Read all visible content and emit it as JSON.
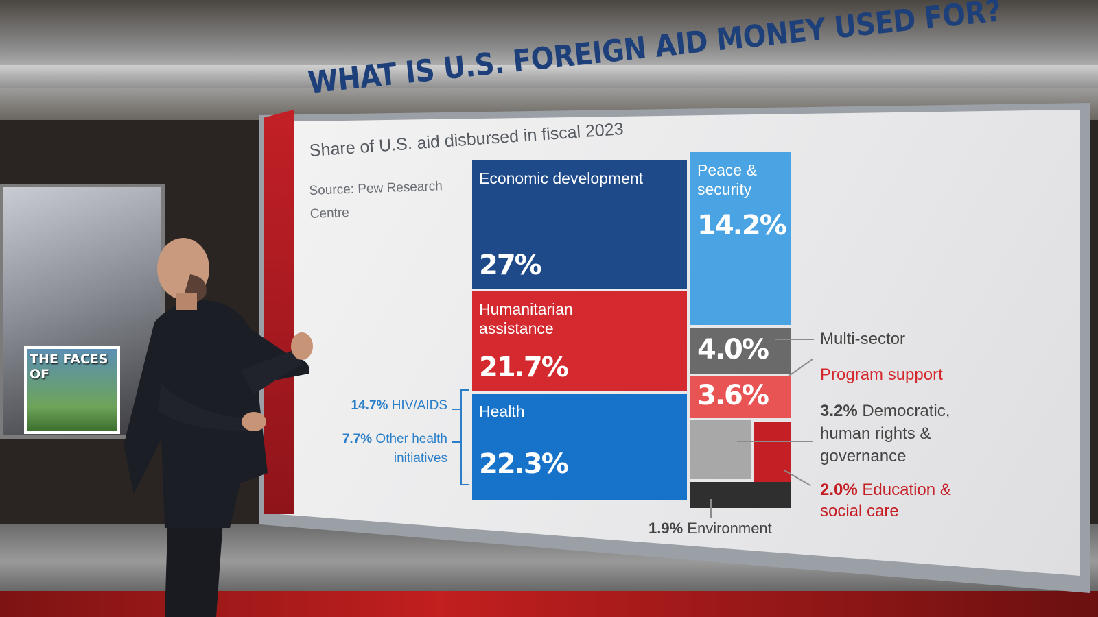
{
  "chart_data": {
    "type": "treemap",
    "title": "WHAT IS U.S. FOREIGN AID MONEY USED FOR?",
    "subtitle": "Share of U.S. aid disbursed in fiscal 2023",
    "source": "Source: Pew Research Centre",
    "unit": "%",
    "segments": [
      {
        "name": "Economic development",
        "value": 27,
        "display": "27%",
        "color": "#1f4a8a"
      },
      {
        "name": "Humanitarian assistance",
        "value": 21.7,
        "display": "21.7%",
        "color": "#d42a2f"
      },
      {
        "name": "Health",
        "value": 22.3,
        "display": "22.3%",
        "color": "#1673c9"
      },
      {
        "name": "Peace & security",
        "value": 14.2,
        "display": "14.2%",
        "color": "#4aa3e3"
      },
      {
        "name": "Multi-sector",
        "value": 4.0,
        "display": "4.0%",
        "color": "#6a6a6a"
      },
      {
        "name": "Program support",
        "value": 3.6,
        "display": "3.6%",
        "color": "#e85454"
      },
      {
        "name": "Democratic, human rights & governance",
        "value": 3.2,
        "display": "3.2%",
        "color": "#a8a8a8"
      },
      {
        "name": "Education & social care",
        "value": 2.0,
        "display": "2.0%",
        "color": "#c41f25"
      },
      {
        "name": "Environment",
        "value": 1.9,
        "display": "1.9%",
        "color": "#2f2f2f"
      }
    ],
    "health_breakdown": [
      {
        "name": "HIV/AIDS",
        "value": 14.7,
        "display": "14.7%"
      },
      {
        "name": "Other health initiatives",
        "value": 7.7,
        "display": "7.7%"
      }
    ]
  },
  "labels": {
    "econ": "Economic development",
    "humanitarian_1": "Humanitarian",
    "humanitarian_2": "assistance",
    "health": "Health",
    "peace_1": "Peace &",
    "peace_2": "security",
    "source_1": "Source: Pew Research",
    "source_2": "Centre",
    "multi": "Multi-sector",
    "program": "Program support",
    "democratic_1": "Democratic,",
    "democratic_2": "human rights &",
    "democratic_3": "governance",
    "education_1": "Education &",
    "education_2": "social care",
    "environment": "Environment",
    "hiv_value": "14.7%",
    "hiv_name": "HIV/AIDS",
    "other_value": "7.7%",
    "other_name_1": "Other health",
    "other_name_2": "initiatives",
    "democratic_value": "3.2%",
    "education_value": "2.0%",
    "environment_value": "1.9%"
  },
  "background": {
    "sign_text": "THE FACES OF"
  }
}
